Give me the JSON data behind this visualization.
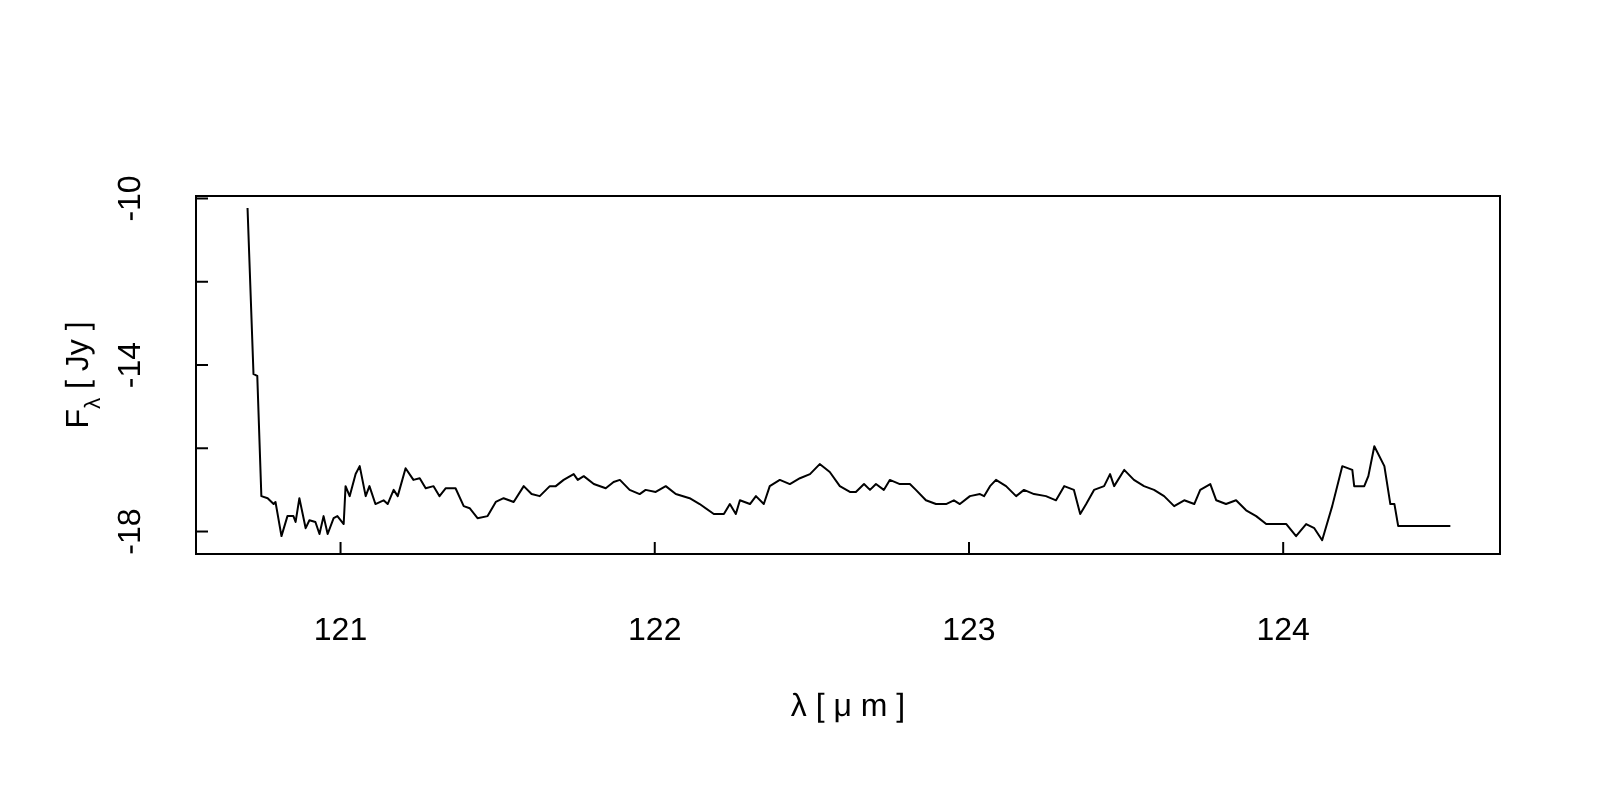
{
  "chart_data": {
    "type": "line",
    "xlabel": "λ [ μ m ]",
    "ylabel": "F$_{λ}$ [ Jy ]",
    "xlim": [
      120.54,
      124.69
    ],
    "ylim": [
      -18.54,
      -9.94
    ],
    "xticks": [
      121,
      122,
      123,
      124
    ],
    "yticks": [
      -10,
      {
        "value": -12,
        "label": null
      },
      -14,
      {
        "value": -16,
        "label": null
      },
      -18
    ],
    "grid": false,
    "series": [
      {
        "color": "#000000",
        "x": [
          120.704,
          120.723,
          120.735,
          120.748,
          120.768,
          120.787,
          120.793,
          120.812,
          120.831,
          120.85,
          120.857,
          120.869,
          120.889,
          120.901,
          120.92,
          120.933,
          120.946,
          120.959,
          120.978,
          120.99,
          121.01,
          121.016,
          121.029,
          121.048,
          121.061,
          121.08,
          121.092,
          121.111,
          121.137,
          121.15,
          121.169,
          121.182,
          121.207,
          121.232,
          121.252,
          121.271,
          121.296,
          121.315,
          121.335,
          121.366,
          121.392,
          121.411,
          121.436,
          121.468,
          121.494,
          121.519,
          121.551,
          121.583,
          121.608,
          121.634,
          121.666,
          121.685,
          121.71,
          121.742,
          121.755,
          121.774,
          121.806,
          121.844,
          121.869,
          121.889,
          121.92,
          121.952,
          121.971,
          122.003,
          122.035,
          122.067,
          122.111,
          122.143,
          122.188,
          122.22,
          122.239,
          122.258,
          122.271,
          122.303,
          122.322,
          122.347,
          122.366,
          122.398,
          122.43,
          122.462,
          122.494,
          122.525,
          122.557,
          122.589,
          122.621,
          122.64,
          122.666,
          122.685,
          122.704,
          122.729,
          122.748,
          122.78,
          122.812,
          122.831,
          122.863,
          122.895,
          122.927,
          122.952,
          122.971,
          123.003,
          123.035,
          123.048,
          123.067,
          123.086,
          123.118,
          123.15,
          123.175,
          123.207,
          123.245,
          123.277,
          123.303,
          123.334,
          123.354,
          123.373,
          123.398,
          123.43,
          123.449,
          123.462,
          123.494,
          123.525,
          123.557,
          123.589,
          123.621,
          123.653,
          123.685,
          123.717,
          123.736,
          123.768,
          123.787,
          123.818,
          123.85,
          123.882,
          123.914,
          123.946,
          123.978,
          124.01,
          124.041,
          124.073,
          124.099,
          124.124,
          124.156,
          124.188,
          124.22,
          124.226,
          124.258,
          124.271,
          124.29,
          124.322,
          124.341,
          124.354,
          124.366,
          124.532
        ],
        "values": [
          -10.23,
          -14.22,
          -14.26,
          -17.15,
          -17.2,
          -17.34,
          -17.29,
          -18.11,
          -17.63,
          -17.63,
          -17.77,
          -17.2,
          -17.92,
          -17.73,
          -17.77,
          -18.06,
          -17.63,
          -18.06,
          -17.68,
          -17.63,
          -17.82,
          -16.91,
          -17.15,
          -16.62,
          -16.43,
          -17.15,
          -16.91,
          -17.34,
          -17.25,
          -17.34,
          -17.0,
          -17.15,
          -16.48,
          -16.76,
          -16.72,
          -16.96,
          -16.91,
          -17.15,
          -16.96,
          -16.96,
          -17.39,
          -17.44,
          -17.68,
          -17.63,
          -17.29,
          -17.2,
          -17.29,
          -16.91,
          -17.1,
          -17.15,
          -16.91,
          -16.91,
          -16.76,
          -16.62,
          -16.76,
          -16.67,
          -16.86,
          -16.96,
          -16.81,
          -16.76,
          -17.0,
          -17.1,
          -17.0,
          -17.05,
          -16.91,
          -17.1,
          -17.2,
          -17.34,
          -17.58,
          -17.58,
          -17.34,
          -17.58,
          -17.25,
          -17.34,
          -17.15,
          -17.34,
          -16.91,
          -16.76,
          -16.86,
          -16.72,
          -16.62,
          -16.38,
          -16.57,
          -16.91,
          -17.05,
          -17.05,
          -16.86,
          -17.0,
          -16.86,
          -17.0,
          -16.76,
          -16.86,
          -16.86,
          -17.0,
          -17.25,
          -17.34,
          -17.34,
          -17.25,
          -17.34,
          -17.15,
          -17.1,
          -17.15,
          -16.91,
          -16.76,
          -16.91,
          -17.15,
          -17.0,
          -17.1,
          -17.15,
          -17.25,
          -16.91,
          -17.0,
          -17.58,
          -17.34,
          -17.0,
          -16.91,
          -16.62,
          -16.91,
          -16.52,
          -16.76,
          -16.91,
          -17.0,
          -17.15,
          -17.39,
          -17.25,
          -17.34,
          -17.0,
          -16.86,
          -17.25,
          -17.34,
          -17.25,
          -17.49,
          -17.63,
          -17.82,
          -17.82,
          -17.82,
          -18.11,
          -17.82,
          -17.92,
          -18.21,
          -17.39,
          -16.43,
          -16.52,
          -16.91,
          -16.91,
          -16.67,
          -15.95,
          -16.43,
          -17.34,
          -17.34,
          -17.87,
          -17.87
        ]
      }
    ]
  }
}
